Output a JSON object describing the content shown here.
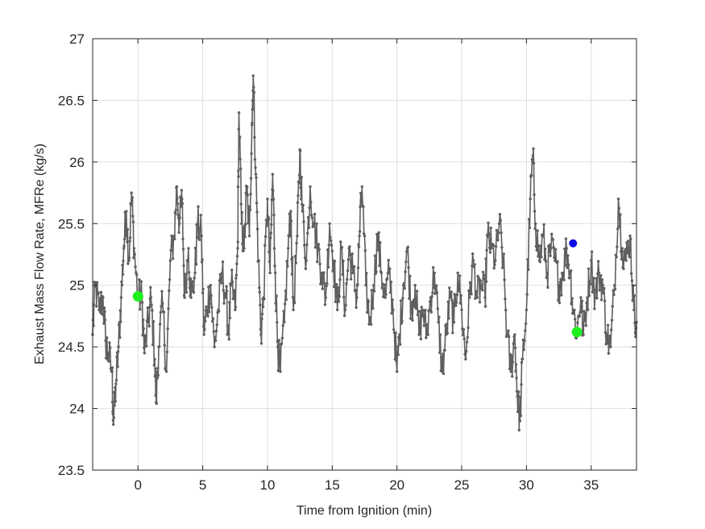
{
  "chart_data": {
    "type": "line",
    "title": "",
    "xlabel": "Time from Ignition (min)",
    "ylabel": "Exhaust Mass Flow Rate, MFRe (kg/s)",
    "xlim": [
      -3.5,
      38.5
    ],
    "ylim": [
      23.5,
      27
    ],
    "xticks": [
      0,
      5,
      10,
      15,
      20,
      25,
      30,
      35
    ],
    "yticks": [
      23.5,
      24,
      24.5,
      25,
      25.5,
      26,
      26.5,
      27
    ],
    "xtick_labels": [
      "0",
      "5",
      "10",
      "15",
      "20",
      "25",
      "30",
      "35"
    ],
    "ytick_labels": [
      "23.5",
      "24",
      "24.5",
      "25",
      "25.5",
      "26",
      "26.5",
      "27"
    ],
    "grid": true,
    "series": [
      {
        "color": "#5f5f5f",
        "marker": "dot",
        "anchors": [
          [
            -3.5,
            24.6
          ],
          [
            -3.3,
            25.0
          ],
          [
            -3.0,
            24.8
          ],
          [
            -2.7,
            24.9
          ],
          [
            -2.5,
            24.55
          ],
          [
            -2.3,
            24.45
          ],
          [
            -2.0,
            24.3
          ],
          [
            -1.9,
            23.87
          ],
          [
            -1.7,
            24.2
          ],
          [
            -1.5,
            24.5
          ],
          [
            -1.3,
            24.9
          ],
          [
            -1.1,
            25.3
          ],
          [
            -0.9,
            25.6
          ],
          [
            -0.7,
            25.2
          ],
          [
            -0.5,
            25.75
          ],
          [
            -0.3,
            25.3
          ],
          [
            0.0,
            24.9
          ],
          [
            0.3,
            24.9
          ],
          [
            0.5,
            24.45
          ],
          [
            0.8,
            24.7
          ],
          [
            1.0,
            24.9
          ],
          [
            1.3,
            24.4
          ],
          [
            1.4,
            24.05
          ],
          [
            1.6,
            24.5
          ],
          [
            1.9,
            24.85
          ],
          [
            2.2,
            24.3
          ],
          [
            2.5,
            25.2
          ],
          [
            2.8,
            25.4
          ],
          [
            3.0,
            25.8
          ],
          [
            3.2,
            25.5
          ],
          [
            3.4,
            25.7
          ],
          [
            3.6,
            24.9
          ],
          [
            3.9,
            25.3
          ],
          [
            4.1,
            24.9
          ],
          [
            4.4,
            25.1
          ],
          [
            4.6,
            25.5
          ],
          [
            4.9,
            25.4
          ],
          [
            5.1,
            24.6
          ],
          [
            5.3,
            24.8
          ],
          [
            5.6,
            25.0
          ],
          [
            5.9,
            24.5
          ],
          [
            6.2,
            24.8
          ],
          [
            6.5,
            25.1
          ],
          [
            6.8,
            24.9
          ],
          [
            7.0,
            24.6
          ],
          [
            7.2,
            25.0
          ],
          [
            7.5,
            24.8
          ],
          [
            7.7,
            25.3
          ],
          [
            7.8,
            26.4
          ],
          [
            8.0,
            25.5
          ],
          [
            8.2,
            25.3
          ],
          [
            8.4,
            25.8
          ],
          [
            8.6,
            25.4
          ],
          [
            8.8,
            26.3
          ],
          [
            8.9,
            26.7
          ],
          [
            9.1,
            25.9
          ],
          [
            9.3,
            25.2
          ],
          [
            9.5,
            24.6
          ],
          [
            9.7,
            24.9
          ],
          [
            10.0,
            25.7
          ],
          [
            10.2,
            25.1
          ],
          [
            10.4,
            25.9
          ],
          [
            10.6,
            25.1
          ],
          [
            10.8,
            24.5
          ],
          [
            11.0,
            24.3
          ],
          [
            11.3,
            24.7
          ],
          [
            11.6,
            25.3
          ],
          [
            11.8,
            25.6
          ],
          [
            12.0,
            24.8
          ],
          [
            12.3,
            25.4
          ],
          [
            12.5,
            26.1
          ],
          [
            12.7,
            25.6
          ],
          [
            13.0,
            25.2
          ],
          [
            13.3,
            25.8
          ],
          [
            13.6,
            25.5
          ],
          [
            13.9,
            25.3
          ],
          [
            14.2,
            25.1
          ],
          [
            14.5,
            24.9
          ],
          [
            14.8,
            25.5
          ],
          [
            15.1,
            25.2
          ],
          [
            15.4,
            24.8
          ],
          [
            15.7,
            25.3
          ],
          [
            16.0,
            24.8
          ],
          [
            16.3,
            25.3
          ],
          [
            16.6,
            25.1
          ],
          [
            16.9,
            24.9
          ],
          [
            17.1,
            25.4
          ],
          [
            17.3,
            25.8
          ],
          [
            17.6,
            25.0
          ],
          [
            17.9,
            24.7
          ],
          [
            18.2,
            25.0
          ],
          [
            18.5,
            25.4
          ],
          [
            18.8,
            25.1
          ],
          [
            19.1,
            24.9
          ],
          [
            19.4,
            25.1
          ],
          [
            19.7,
            24.8
          ],
          [
            20.0,
            24.3
          ],
          [
            20.2,
            24.6
          ],
          [
            20.5,
            25.0
          ],
          [
            20.8,
            25.3
          ],
          [
            21.1,
            24.8
          ],
          [
            21.4,
            25.0
          ],
          [
            21.7,
            24.6
          ],
          [
            22.0,
            24.8
          ],
          [
            22.3,
            24.6
          ],
          [
            22.6,
            24.9
          ],
          [
            22.9,
            25.1
          ],
          [
            23.2,
            24.7
          ],
          [
            23.5,
            24.3
          ],
          [
            23.8,
            24.6
          ],
          [
            24.1,
            24.9
          ],
          [
            24.4,
            24.7
          ],
          [
            24.7,
            25.1
          ],
          [
            25.0,
            24.8
          ],
          [
            25.3,
            24.4
          ],
          [
            25.6,
            24.9
          ],
          [
            25.9,
            25.2
          ],
          [
            26.2,
            24.9
          ],
          [
            26.5,
            25.0
          ],
          [
            26.8,
            24.9
          ],
          [
            27.0,
            25.4
          ],
          [
            27.3,
            25.3
          ],
          [
            27.6,
            25.2
          ],
          [
            27.9,
            25.5
          ],
          [
            28.2,
            25.2
          ],
          [
            28.5,
            24.6
          ],
          [
            28.8,
            24.3
          ],
          [
            29.1,
            24.6
          ],
          [
            29.3,
            24.1
          ],
          [
            29.5,
            23.9
          ],
          [
            29.7,
            24.4
          ],
          [
            30.0,
            24.8
          ],
          [
            30.3,
            25.7
          ],
          [
            30.5,
            26.05
          ],
          [
            30.7,
            25.5
          ],
          [
            31.0,
            25.2
          ],
          [
            31.3,
            25.4
          ],
          [
            31.6,
            25.1
          ],
          [
            31.9,
            25.3
          ],
          [
            32.2,
            25.2
          ],
          [
            32.5,
            25.0
          ],
          [
            32.8,
            25.1
          ],
          [
            33.1,
            25.3
          ],
          [
            33.4,
            25.1
          ],
          [
            33.6,
            24.8
          ],
          [
            33.9,
            24.62
          ],
          [
            34.2,
            24.9
          ],
          [
            34.4,
            24.6
          ],
          [
            34.7,
            24.9
          ],
          [
            35.0,
            25.2
          ],
          [
            35.3,
            24.9
          ],
          [
            35.6,
            25.1
          ],
          [
            35.9,
            25.0
          ],
          [
            36.2,
            24.6
          ],
          [
            36.5,
            24.5
          ],
          [
            36.8,
            25.0
          ],
          [
            37.1,
            25.7
          ],
          [
            37.4,
            25.3
          ],
          [
            37.7,
            25.2
          ],
          [
            38.0,
            25.4
          ],
          [
            38.3,
            24.8
          ],
          [
            38.5,
            24.7
          ]
        ]
      }
    ],
    "highlight_points": [
      {
        "x": 0.0,
        "y": 24.91,
        "color": "#1ff11f",
        "label": "green-start"
      },
      {
        "x": 33.9,
        "y": 24.62,
        "color": "#1ff11f",
        "label": "green-end"
      },
      {
        "x": 33.6,
        "y": 25.34,
        "color": "#0a0ae6",
        "label": "blue"
      }
    ]
  }
}
